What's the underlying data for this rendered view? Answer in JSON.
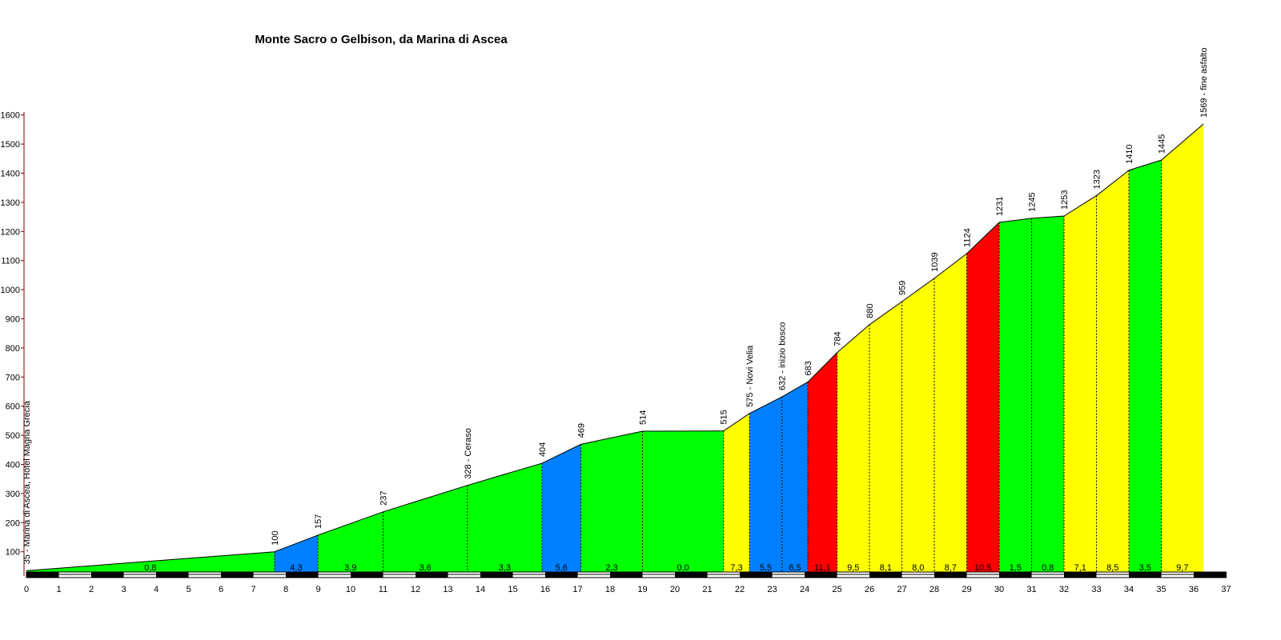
{
  "chart_data": {
    "type": "area",
    "title": "Monte Sacro o Gelbison, da Marina di Ascea",
    "xlabel": "",
    "ylabel": "",
    "xlim": [
      0,
      37
    ],
    "ylim": [
      25,
      1600
    ],
    "x_ticks": [
      "0",
      "1",
      "2",
      "3",
      "4",
      "5",
      "6",
      "7",
      "8",
      "9",
      "10",
      "11",
      "12",
      "13",
      "14",
      "15",
      "16",
      "17",
      "18",
      "19",
      "20",
      "21",
      "22",
      "23",
      "24",
      "25",
      "26",
      "27",
      "28",
      "29",
      "30",
      "31",
      "32",
      "33",
      "34",
      "35",
      "36",
      "37"
    ],
    "y_ticks": [
      "100",
      "200",
      "300",
      "400",
      "500",
      "600",
      "700",
      "800",
      "900",
      "1000",
      "1100",
      "1200",
      "1300",
      "1400",
      "1500",
      "1600"
    ],
    "y_tick_values": [
      100,
      200,
      300,
      400,
      500,
      600,
      700,
      800,
      900,
      1000,
      1100,
      1200,
      1300,
      1400,
      1500,
      1600
    ],
    "grid": false,
    "legend": "none",
    "colors": {
      "green": "#00ff00",
      "blue": "#0080ff",
      "yellow": "#ffff00",
      "red": "#ff0000",
      "axis": "#000000",
      "y_axis_ticks": "#800000"
    },
    "profile": [
      {
        "x": 0.0,
        "elev": 35
      },
      {
        "x": 7.65,
        "elev": 100
      },
      {
        "x": 8.99,
        "elev": 157
      },
      {
        "x": 11.0,
        "elev": 237
      },
      {
        "x": 13.6,
        "elev": 328
      },
      {
        "x": 15.9,
        "elev": 404
      },
      {
        "x": 17.1,
        "elev": 469
      },
      {
        "x": 19.0,
        "elev": 514
      },
      {
        "x": 21.5,
        "elev": 515
      },
      {
        "x": 22.3,
        "elev": 575
      },
      {
        "x": 23.3,
        "elev": 632
      },
      {
        "x": 24.1,
        "elev": 683
      },
      {
        "x": 25.0,
        "elev": 784
      },
      {
        "x": 26.0,
        "elev": 880
      },
      {
        "x": 27.0,
        "elev": 959
      },
      {
        "x": 28.0,
        "elev": 1039
      },
      {
        "x": 29.0,
        "elev": 1124
      },
      {
        "x": 30.0,
        "elev": 1231
      },
      {
        "x": 31.0,
        "elev": 1245
      },
      {
        "x": 32.0,
        "elev": 1253
      },
      {
        "x": 33.0,
        "elev": 1323
      },
      {
        "x": 34.0,
        "elev": 1410
      },
      {
        "x": 35.0,
        "elev": 1445
      },
      {
        "x": 36.3,
        "elev": 1569
      }
    ],
    "point_labels": [
      "35 - Marina di Ascea, Hotel Magna Grecia",
      "100",
      "157",
      "237",
      "328 - Ceraso",
      "404",
      "469",
      "514",
      "515",
      "575 - Novi Velia",
      "632 - inizio bosco",
      "683",
      "784",
      "880",
      "959",
      "1039",
      "1124",
      "1231",
      "1245",
      "1253",
      "1323",
      "1410",
      "1445",
      "1569 - fine asfalto"
    ],
    "segments": [
      {
        "grade": "0,8",
        "color": "green"
      },
      {
        "grade": "4,3",
        "color": "blue"
      },
      {
        "grade": "3,9",
        "color": "green"
      },
      {
        "grade": "3,6",
        "color": "green"
      },
      {
        "grade": "3,3",
        "color": "green"
      },
      {
        "grade": "5,6",
        "color": "blue"
      },
      {
        "grade": "2,3",
        "color": "green"
      },
      {
        "grade": "0,0",
        "color": "green"
      },
      {
        "grade": "7,3",
        "color": "yellow"
      },
      {
        "grade": "5,5",
        "color": "blue"
      },
      {
        "grade": "6,5",
        "color": "blue"
      },
      {
        "grade": "11,1",
        "color": "red"
      },
      {
        "grade": "9,5",
        "color": "yellow"
      },
      {
        "grade": "8,1",
        "color": "yellow"
      },
      {
        "grade": "8,0",
        "color": "yellow"
      },
      {
        "grade": "8,7",
        "color": "yellow"
      },
      {
        "grade": "10,5",
        "color": "red"
      },
      {
        "grade": "1,5",
        "color": "green"
      },
      {
        "grade": "0,8",
        "color": "green"
      },
      {
        "grade": "7,1",
        "color": "yellow"
      },
      {
        "grade": "8,5",
        "color": "yellow"
      },
      {
        "grade": "3,5",
        "color": "green"
      },
      {
        "grade": "9,7",
        "color": "yellow"
      }
    ]
  }
}
